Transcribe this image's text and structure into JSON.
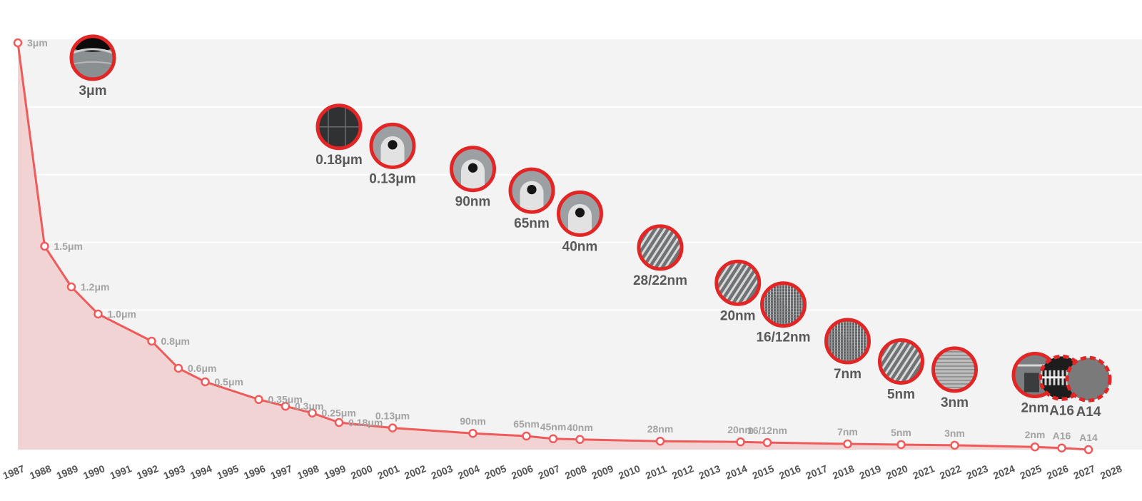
{
  "chart_data": {
    "type": "line",
    "title": "",
    "xlabel": "",
    "ylabel": "",
    "grid": true,
    "x_ticks": [
      "1987",
      "1988",
      "1989",
      "1990",
      "1991",
      "1992",
      "1993",
      "1994",
      "1995",
      "1996",
      "1997",
      "1998",
      "1999",
      "2000",
      "2001",
      "2002",
      "2003",
      "2004",
      "2005",
      "2006",
      "2007",
      "2008",
      "2009",
      "2010",
      "2011",
      "2012",
      "2013",
      "2014",
      "2015",
      "2016",
      "2017",
      "2018",
      "2019",
      "2020",
      "2021",
      "2022",
      "2023",
      "2024",
      "2025",
      "2026",
      "2027",
      "2028"
    ],
    "points": [
      {
        "year": 1987,
        "label": "3μm",
        "value_um": 3.0
      },
      {
        "year": 1988,
        "label": "1.5μm",
        "value_um": 1.5
      },
      {
        "year": 1989,
        "label": "1.2μm",
        "value_um": 1.2
      },
      {
        "year": 1990,
        "label": "1.0μm",
        "value_um": 1.0
      },
      {
        "year": 1992,
        "label": "0.8μm",
        "value_um": 0.8
      },
      {
        "year": 1993,
        "label": "0.6μm",
        "value_um": 0.6
      },
      {
        "year": 1994,
        "label": "0.5μm",
        "value_um": 0.5
      },
      {
        "year": 1996,
        "label": "0.35μm",
        "value_um": 0.37
      },
      {
        "year": 1997,
        "label": "0.3μm",
        "value_um": 0.32
      },
      {
        "year": 1998,
        "label": "0.25μm",
        "value_um": 0.27
      },
      {
        "year": 1999,
        "label": "0.18μm",
        "value_um": 0.2
      },
      {
        "year": 2001,
        "label": "0.13μm",
        "value_um": 0.16
      },
      {
        "year": 2004,
        "label": "90nm",
        "value_um": 0.12
      },
      {
        "year": 2006,
        "label": "65nm",
        "value_um": 0.1
      },
      {
        "year": 2007,
        "label": "45nm",
        "value_um": 0.08
      },
      {
        "year": 2008,
        "label": "40nm",
        "value_um": 0.075
      },
      {
        "year": 2011,
        "label": "28nm",
        "value_um": 0.062
      },
      {
        "year": 2014,
        "label": "20nm",
        "value_um": 0.057
      },
      {
        "year": 2015,
        "label": "16/12nm",
        "value_um": 0.052
      },
      {
        "year": 2018,
        "label": "7nm",
        "value_um": 0.042
      },
      {
        "year": 2020,
        "label": "5nm",
        "value_um": 0.037
      },
      {
        "year": 2022,
        "label": "3nm",
        "value_um": 0.032
      },
      {
        "year": 2025,
        "label": "2nm",
        "value_um": 0.02
      },
      {
        "year": 2026,
        "label": "A16",
        "value_um": 0.012
      },
      {
        "year": 2027,
        "label": "A14",
        "value_um": 0.0
      }
    ],
    "nodes": [
      {
        "label": "3μm",
        "year": 1989.8,
        "level": 2.89,
        "dashed": false,
        "texture": "layers"
      },
      {
        "label": "0.18μm",
        "year": 1999.0,
        "level": 2.38,
        "dashed": false,
        "texture": "dark"
      },
      {
        "label": "0.13μm",
        "year": 2001.0,
        "level": 2.24,
        "dashed": false,
        "texture": "gate"
      },
      {
        "label": "90nm",
        "year": 2004.0,
        "level": 2.07,
        "dashed": false,
        "texture": "gate"
      },
      {
        "label": "65nm",
        "year": 2006.2,
        "level": 1.91,
        "dashed": false,
        "texture": "gate"
      },
      {
        "label": "40nm",
        "year": 2008.0,
        "level": 1.74,
        "dashed": false,
        "texture": "gate"
      },
      {
        "label": "28/22nm",
        "year": 2011.0,
        "level": 1.49,
        "dashed": false,
        "texture": "fins"
      },
      {
        "label": "20nm",
        "year": 2013.9,
        "level": 1.23,
        "dashed": false,
        "texture": "fins"
      },
      {
        "label": "16/12nm",
        "year": 2015.6,
        "level": 1.07,
        "dashed": false,
        "texture": "grid"
      },
      {
        "label": "7nm",
        "year": 2018.0,
        "level": 0.8,
        "dashed": false,
        "texture": "grid"
      },
      {
        "label": "5nm",
        "year": 2020.0,
        "level": 0.65,
        "dashed": false,
        "texture": "fins"
      },
      {
        "label": "3nm",
        "year": 2022.0,
        "level": 0.59,
        "dashed": false,
        "texture": "stripes"
      },
      {
        "label": "2nm",
        "year": 2025.0,
        "level": 0.55,
        "dashed": false,
        "texture": "blocks"
      },
      {
        "label": "A16",
        "year": 2026.0,
        "level": 0.53,
        "dashed": true,
        "texture": "dots"
      },
      {
        "label": "A14",
        "year": 2027.0,
        "level": 0.52,
        "dashed": true,
        "texture": "plain"
      }
    ],
    "colors": {
      "line": "#ef5b5b",
      "area": "#f1d3d3",
      "plot_band": "#f3f3f3",
      "gridline": "#ffffff",
      "node_ring": "#e22525",
      "point_label": "#a3a3a3",
      "node_label": "#595959",
      "year_label": "#555555"
    }
  }
}
